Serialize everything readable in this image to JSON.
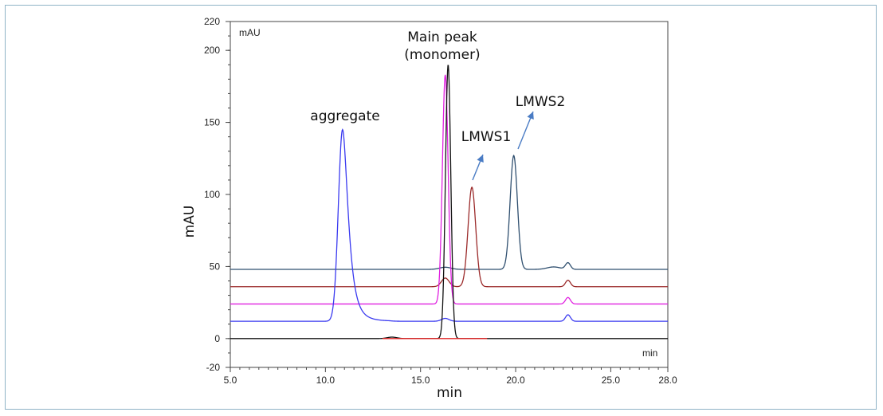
{
  "chart_data": {
    "type": "line",
    "title": "",
    "xlabel": "min",
    "ylabel": "mAU",
    "x_unit_label": "min",
    "y_unit_label": "mAU",
    "xlim": [
      5.0,
      28.0
    ],
    "ylim": [
      -20,
      220
    ],
    "x_ticks": [
      5.0,
      10.0,
      15.0,
      20.0,
      25.0,
      28.0
    ],
    "x_tick_labels": [
      "5.0",
      "10.0",
      "15.0",
      "20.0",
      "25.0",
      "28.0"
    ],
    "y_ticks": [
      -20,
      0,
      50,
      100,
      150,
      200,
      220
    ],
    "y_tick_labels": [
      "-20",
      "0",
      "50",
      "100",
      "150",
      "200",
      "220"
    ],
    "grid": false,
    "annotations": {
      "aggregate": "aggregate",
      "main_peak_line1": "Main peak",
      "main_peak_line2": "(monomer)",
      "lmws1": "LMWS1",
      "lmws2": "LMWS2"
    },
    "arrow_color": "#4a7cc4",
    "series": [
      {
        "color": "#2f4f6f",
        "baseline": 48,
        "peaks": [
          {
            "center": 16.3,
            "height": 1.5,
            "sigma": 0.3
          },
          {
            "center": 19.9,
            "height": 79,
            "sigma": 0.19
          },
          {
            "center": 22.0,
            "height": 1.7,
            "sigma": 0.35
          },
          {
            "center": 22.75,
            "height": 4.5,
            "sigma": 0.13
          }
        ]
      },
      {
        "color": "#9b2a2a",
        "baseline": 36,
        "peaks": [
          {
            "center": 16.3,
            "height": 6,
            "sigma": 0.2
          },
          {
            "center": 17.7,
            "height": 69,
            "sigma": 0.2
          },
          {
            "center": 22.75,
            "height": 4.5,
            "sigma": 0.13
          }
        ]
      },
      {
        "color": "#e020e0",
        "baseline": 24,
        "peaks": [
          {
            "center": 16.3,
            "height": 159,
            "sigma": 0.15
          },
          {
            "center": 22.75,
            "height": 4.5,
            "sigma": 0.13
          }
        ]
      },
      {
        "color": "#3a3af0",
        "baseline": 12,
        "peaks": [
          {
            "center": 10.9,
            "height": 133,
            "sigma": 0.22,
            "tail": 0.45
          },
          {
            "center": 16.3,
            "height": 2,
            "sigma": 0.2
          },
          {
            "center": 22.75,
            "height": 4.5,
            "sigma": 0.13
          }
        ]
      },
      {
        "color": "#111111",
        "baseline": 0,
        "peaks": [
          {
            "center": 13.5,
            "height": 1,
            "sigma": 0.25
          },
          {
            "center": 16.45,
            "height": 190,
            "sigma": 0.14
          }
        ]
      },
      {
        "color": "#e02020",
        "baseline": 0,
        "x_range": [
          13.0,
          18.5
        ],
        "peaks": []
      }
    ]
  }
}
